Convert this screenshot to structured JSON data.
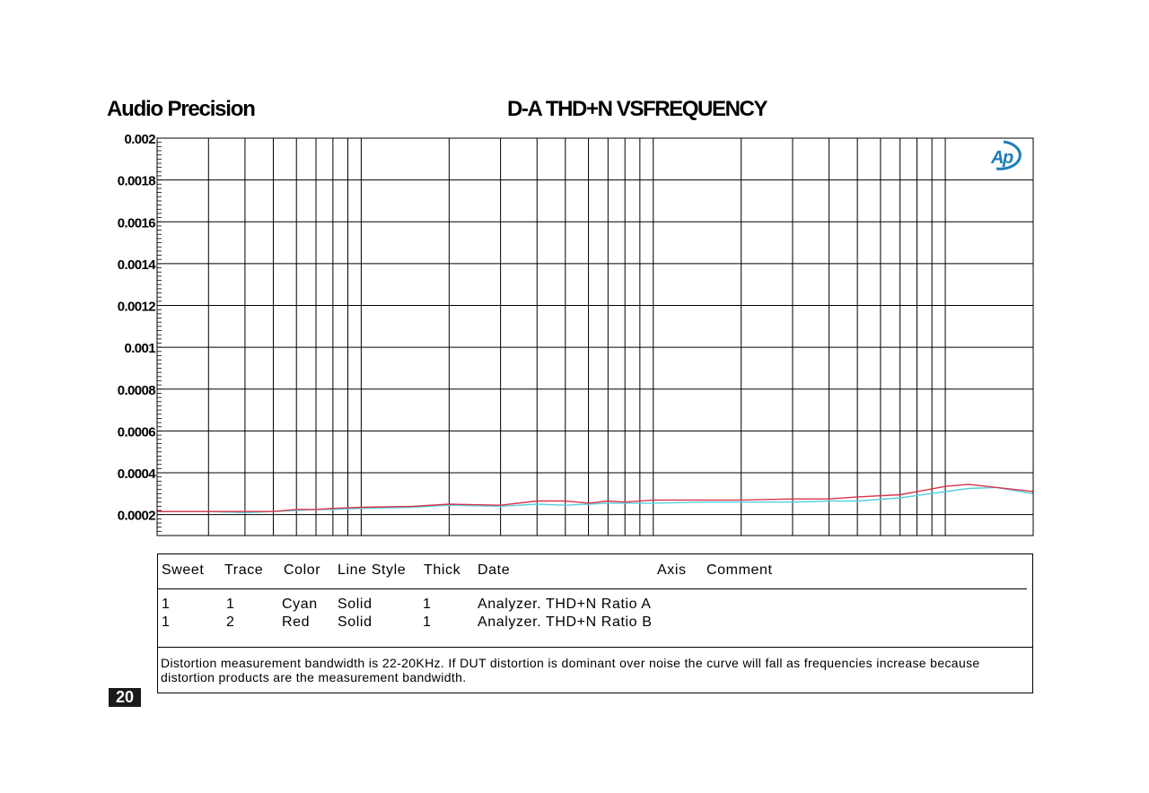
{
  "header": {
    "brand": "Audio Precision",
    "title": "D-A THD+N VSFREQUENCY"
  },
  "logo": {
    "text": "Ap",
    "color": "#1e7fb8"
  },
  "chart_data": {
    "type": "line",
    "title": "D-A THD+N VSFREQUENCY",
    "xlabel": "",
    "ylabel": "",
    "x_scale": "log",
    "xlim": [
      20,
      20000
    ],
    "ylim": [
      0.0001,
      0.002
    ],
    "y_ticks": [
      0.002,
      0.0018,
      0.0016,
      0.0014,
      0.0012,
      0.001,
      0.0008,
      0.0006,
      0.0004,
      0.0002
    ],
    "y_tick_labels": [
      "0.002",
      "0.0018",
      "0.0016",
      "0.0014",
      "0.0012",
      "0.001",
      "0.0008",
      "0.0006",
      "0.0004",
      "0.0002"
    ],
    "grid": true,
    "series": [
      {
        "name": "Trace 1",
        "color": "#55d0e0",
        "x": [
          20,
          30,
          40,
          50,
          60,
          70,
          80,
          100,
          150,
          200,
          300,
          400,
          500,
          600,
          700,
          800,
          1000,
          1500,
          2000,
          3000,
          4000,
          5000,
          7000,
          10000,
          12000,
          15000,
          20000
        ],
        "y": [
          0.000215,
          0.000215,
          0.00021,
          0.000215,
          0.00022,
          0.000225,
          0.000225,
          0.00023,
          0.000235,
          0.000245,
          0.00024,
          0.00025,
          0.000245,
          0.00025,
          0.000255,
          0.000255,
          0.000255,
          0.00026,
          0.00026,
          0.00026,
          0.000265,
          0.000265,
          0.00028,
          0.00031,
          0.000325,
          0.00033,
          0.0003
        ]
      },
      {
        "name": "Trace 2",
        "color": "#d9344a",
        "x": [
          20,
          30,
          40,
          50,
          60,
          70,
          80,
          100,
          150,
          200,
          300,
          400,
          500,
          600,
          700,
          800,
          1000,
          1500,
          2000,
          3000,
          4000,
          5000,
          7000,
          10000,
          12000,
          15000,
          20000
        ],
        "y": [
          0.000215,
          0.000215,
          0.000215,
          0.000215,
          0.000225,
          0.000225,
          0.00023,
          0.000235,
          0.00024,
          0.00025,
          0.000245,
          0.000265,
          0.000265,
          0.000255,
          0.000265,
          0.00026,
          0.00027,
          0.00027,
          0.00027,
          0.000275,
          0.000275,
          0.000285,
          0.000295,
          0.000335,
          0.000345,
          0.00033,
          0.00031
        ]
      }
    ]
  },
  "legend": {
    "headers": [
      "Sweet",
      "Trace",
      "Color",
      "Line Style",
      "Thick",
      "Date",
      "Axis",
      "Comment"
    ],
    "rows": [
      [
        "1",
        "1",
        "Cyan",
        "Solid",
        "1",
        "Analyzer. THD+N Ratio A"
      ],
      [
        "1",
        "2",
        "Red",
        "Solid",
        "1",
        "Analyzer. THD+N Ratio B"
      ]
    ]
  },
  "note": "Distortion measurement bandwidth is 22-20KHz. If DUT distortion is dominant over noise the curve will fall as frequencies increase because distortion products are the measurement bandwidth.",
  "page_number": "20"
}
